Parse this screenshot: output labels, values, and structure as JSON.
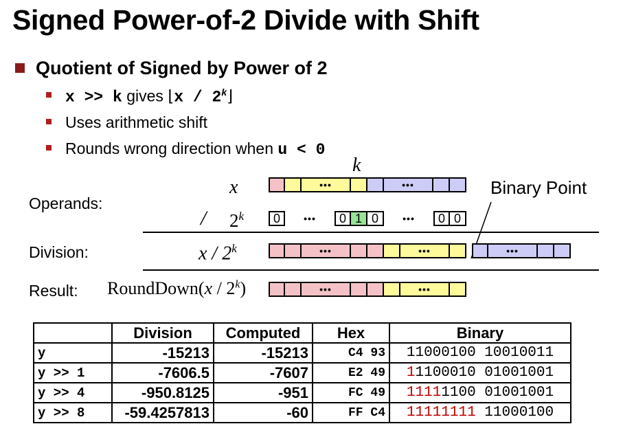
{
  "title": "Signed Power-of-2 Divide with Shift",
  "heading": "Quotient of Signed by Power of 2",
  "bullets": {
    "b1": {
      "code1": "x >> k",
      "text": "gives",
      "floor_open": "⌊",
      "code2": "x / 2",
      "exp": "k",
      "floor_close": "⌋"
    },
    "b2": "Uses arithmetic shift",
    "b3": {
      "text": "Rounds wrong direction when",
      "code": "u < 0"
    }
  },
  "diagram": {
    "k_label": "k",
    "x_label": "x",
    "div_op": "/",
    "two": "2",
    "exp": "k",
    "binary_point": "Binary Point",
    "operands": "Operands:",
    "division": "Division:",
    "result": "Result:",
    "x_over": "x / 2",
    "round_pre": "RoundDown(",
    "round_x": "x",
    "round_mid": " / 2",
    "round_post": ")",
    "dots": "•••",
    "zero": "0",
    "one": "1"
  },
  "table": {
    "headers": [
      "",
      "Division",
      "Computed",
      "Hex",
      "Binary"
    ],
    "rows": [
      {
        "expr": "y",
        "division": "-15213",
        "computed": "-15213",
        "hex": "C4 93",
        "bin_red": "",
        "bin_rest": "11000100 10010011"
      },
      {
        "expr": "y >> 1",
        "division": "-7606.5",
        "computed": "-7607",
        "hex": "E2 49",
        "bin_red": "1",
        "bin_rest": "1100010 01001001"
      },
      {
        "expr": "y >> 4",
        "division": "-950.8125",
        "computed": "-951",
        "hex": "FC 49",
        "bin_red": "1111",
        "bin_rest": "1100 01001001"
      },
      {
        "expr": "y >> 8",
        "division": "-59.4257813",
        "computed": "-60",
        "hex": "FF C4",
        "bin_red": "11111111",
        "bin_rest": " 11000100"
      }
    ]
  }
}
